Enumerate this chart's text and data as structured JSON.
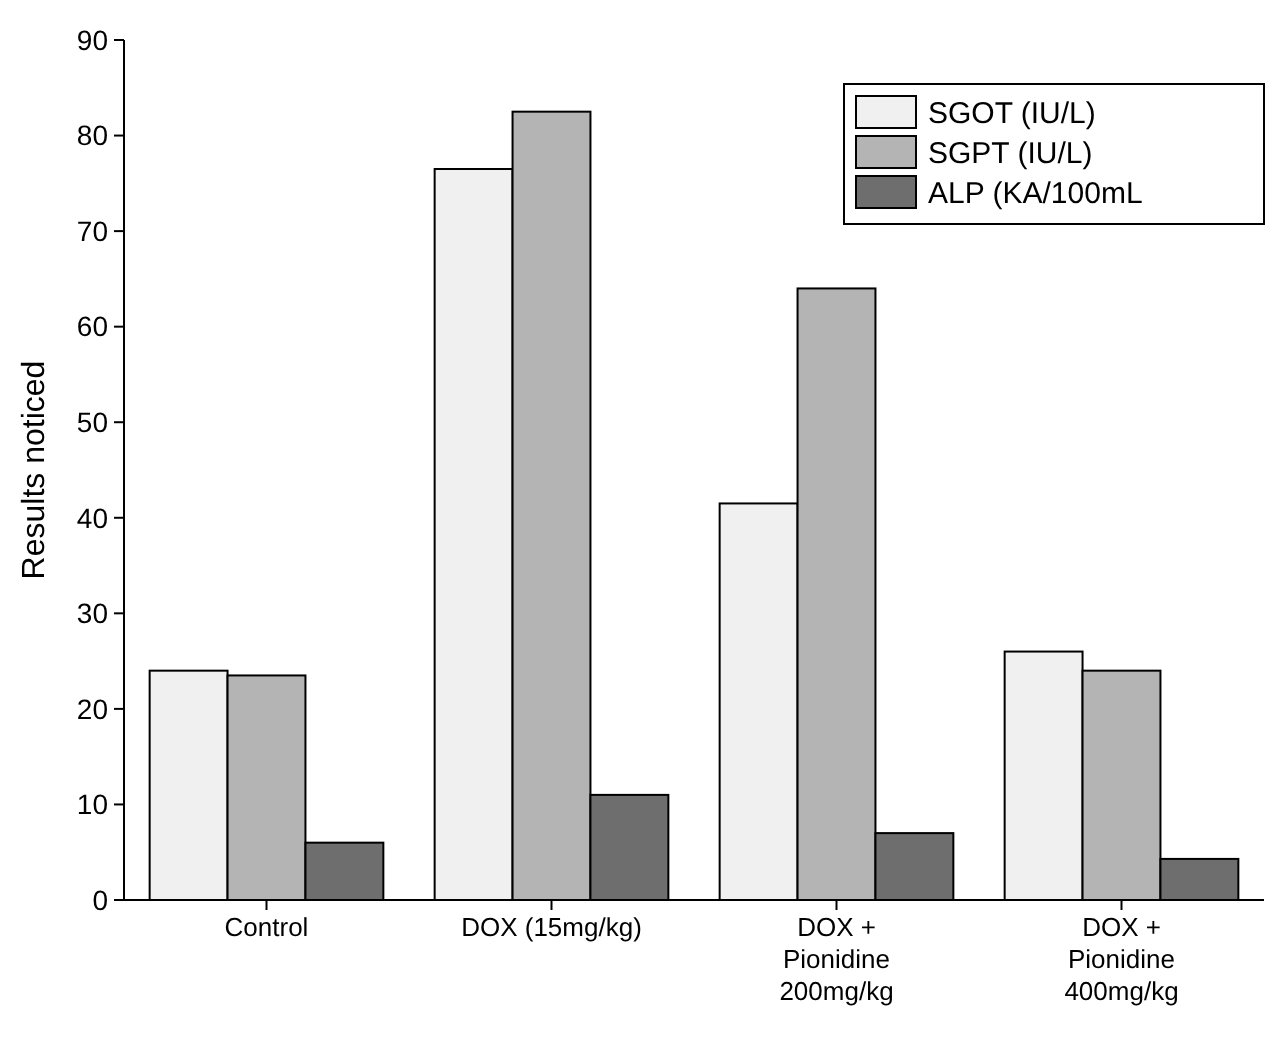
{
  "chart_data": {
    "type": "bar",
    "ylabel": "Results noticed",
    "categories": [
      "Control",
      "DOX (15mg/kg)",
      "DOX + Pionidine 200mg/kg",
      "DOX + Pionidine 400mg/kg"
    ],
    "series": [
      {
        "name": "SGOT (IU/L)",
        "color": "#f0f0f0",
        "values": [
          24,
          76.5,
          41.5,
          26
        ]
      },
      {
        "name": "SGPT (IU/L)",
        "color": "#b4b4b4",
        "values": [
          23.5,
          82.5,
          64,
          24
        ]
      },
      {
        "name": "ALP (KA/100mL",
        "color": "#6e6e6e",
        "values": [
          6,
          11,
          7,
          4.3
        ]
      }
    ],
    "ylim": [
      0,
      90
    ],
    "yticks": [
      0,
      10,
      20,
      30,
      40,
      50,
      60,
      70,
      80,
      90
    ],
    "grid": false,
    "legend": "top right"
  }
}
